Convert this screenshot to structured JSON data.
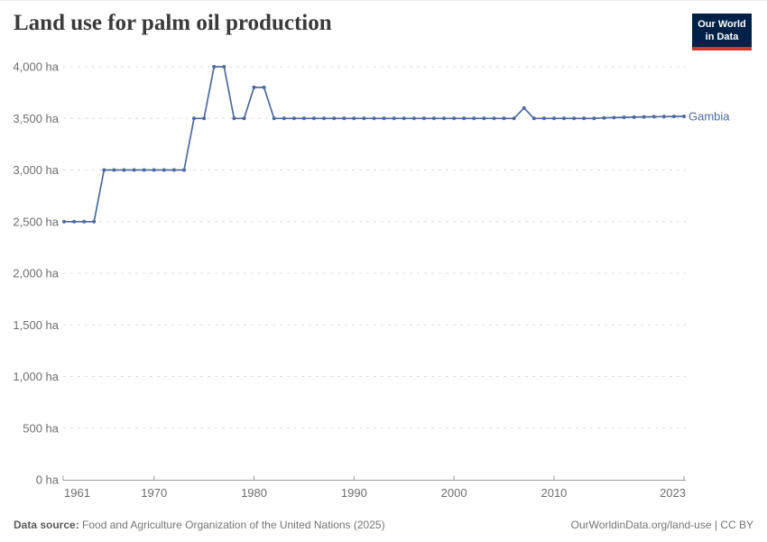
{
  "header": {
    "title": "Land use for palm oil production",
    "logo": {
      "line1": "Our World",
      "line2": "in Data",
      "bg_color": "#002147",
      "accent_color": "#d8352a",
      "text_color": "#ffffff"
    }
  },
  "chart_data": {
    "type": "line",
    "title": "Land use for palm oil production",
    "entity": "Gambia",
    "y_unit": "ha",
    "xlim": [
      1961,
      2023
    ],
    "ylim": [
      0,
      4000
    ],
    "x_ticks": [
      1961,
      1970,
      1980,
      1990,
      2000,
      2010,
      2023
    ],
    "y_ticks": [
      0,
      500,
      1000,
      1500,
      2000,
      2500,
      3000,
      3500,
      4000
    ],
    "grid": "horizontal-dashed",
    "legend_position": "end-of-line-label",
    "colors": {
      "line": "#4C6A9C",
      "grid": "#dedede",
      "axis": "#9c9c9c",
      "axis_text": "#6e6e6e"
    },
    "series": [
      {
        "name": "Gambia",
        "color": "#4C6A9C",
        "x": [
          1961,
          1962,
          1963,
          1964,
          1965,
          1966,
          1967,
          1968,
          1969,
          1970,
          1971,
          1972,
          1973,
          1974,
          1975,
          1976,
          1977,
          1978,
          1979,
          1980,
          1981,
          1982,
          1983,
          1984,
          1985,
          1986,
          1987,
          1988,
          1989,
          1990,
          1991,
          1992,
          1993,
          1994,
          1995,
          1996,
          1997,
          1998,
          1999,
          2000,
          2001,
          2002,
          2003,
          2004,
          2005,
          2006,
          2007,
          2008,
          2009,
          2010,
          2011,
          2012,
          2013,
          2014,
          2015,
          2016,
          2017,
          2018,
          2019,
          2020,
          2021,
          2022,
          2023
        ],
        "values": [
          2500,
          2500,
          2500,
          2500,
          3000,
          3000,
          3000,
          3000,
          3000,
          3000,
          3000,
          3000,
          3000,
          3500,
          3500,
          4000,
          4000,
          3500,
          3500,
          3800,
          3800,
          3500,
          3500,
          3500,
          3500,
          3500,
          3500,
          3500,
          3500,
          3500,
          3500,
          3500,
          3500,
          3500,
          3500,
          3500,
          3500,
          3500,
          3500,
          3500,
          3500,
          3500,
          3500,
          3500,
          3500,
          3500,
          3600,
          3500,
          3500,
          3500,
          3500,
          3500,
          3500,
          3500,
          3505,
          3507,
          3510,
          3512,
          3514,
          3516,
          3517,
          3519,
          3520
        ]
      }
    ]
  },
  "footer": {
    "source_label": "Data source:",
    "source_text": " Food and Agriculture Organization of the United Nations (2025)",
    "credit_link": "OurWorldinData.org/land-use",
    "credit_license": " | CC BY"
  }
}
